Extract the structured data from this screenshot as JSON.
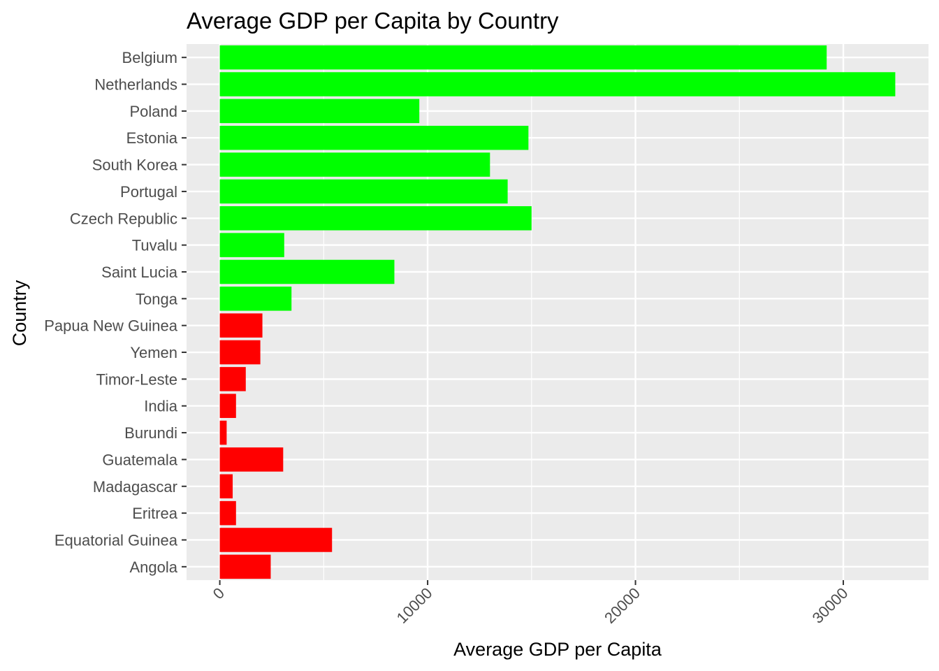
{
  "chart_data": {
    "type": "bar",
    "orientation": "horizontal",
    "title": "Average GDP per Capita by Country",
    "xlabel": "Average GDP per Capita",
    "ylabel": "Country",
    "xlim": [
      -1600,
      34100
    ],
    "xticks": [
      0,
      10000,
      20000,
      30000
    ],
    "xtick_labels": [
      "0",
      "10000",
      "20000",
      "30000"
    ],
    "grid": true,
    "legend": "none",
    "colors": {
      "high": "#00ff00",
      "low": "#ff0000",
      "panel": "#ebebeb",
      "grid": "#ffffff"
    },
    "categories": [
      "Belgium",
      "Netherlands",
      "Poland",
      "Estonia",
      "South Korea",
      "Portugal",
      "Czech Republic",
      "Tuvalu",
      "Saint Lucia",
      "Tonga",
      "Papua New Guinea",
      "Yemen",
      "Timor-Leste",
      "India",
      "Burundi",
      "Guatemala",
      "Madagascar",
      "Eritrea",
      "Equatorial Guinea",
      "Angola"
    ],
    "values": [
      29200,
      32500,
      9600,
      14850,
      13000,
      13850,
      15000,
      3100,
      8400,
      3450,
      2050,
      1950,
      1250,
      780,
      330,
      3050,
      620,
      780,
      5400,
      2450
    ],
    "groups": [
      "high",
      "high",
      "high",
      "high",
      "high",
      "high",
      "high",
      "high",
      "high",
      "high",
      "low",
      "low",
      "low",
      "low",
      "low",
      "low",
      "low",
      "low",
      "low",
      "low"
    ]
  }
}
